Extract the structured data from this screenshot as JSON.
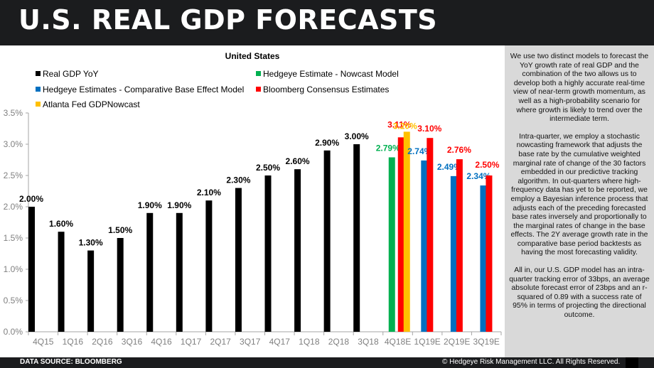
{
  "header": {
    "title": "U.S. REAL GDP FORECASTS"
  },
  "chart_data": {
    "type": "bar",
    "title": "United States",
    "xlabel": "",
    "ylabel": "",
    "ylim": [
      0,
      3.5
    ],
    "yticks": [
      "0.0%",
      "0.5%",
      "1.0%",
      "1.5%",
      "2.0%",
      "2.5%",
      "3.0%",
      "3.5%"
    ],
    "ytick_values": [
      0,
      0.5,
      1.0,
      1.5,
      2.0,
      2.5,
      3.0,
      3.5
    ],
    "grid": false,
    "legend_placement": "top",
    "categories": [
      "4Q15",
      "1Q16",
      "2Q16",
      "3Q16",
      "4Q16",
      "1Q17",
      "2Q17",
      "3Q17",
      "4Q17",
      "1Q18",
      "2Q18",
      "3Q18",
      "4Q18E",
      "1Q19E",
      "2Q19E",
      "3Q19E"
    ],
    "series": [
      {
        "name": "Real GDP YoY",
        "color": "#000000",
        "values": [
          2.0,
          1.6,
          1.3,
          1.5,
          1.9,
          1.9,
          2.1,
          2.3,
          2.5,
          2.6,
          2.9,
          3.0,
          null,
          null,
          null,
          null
        ],
        "labels": [
          "2.00%",
          "1.60%",
          "1.30%",
          "1.50%",
          "1.90%",
          "1.90%",
          "2.10%",
          "2.30%",
          "2.50%",
          "2.60%",
          "2.90%",
          "3.00%",
          null,
          null,
          null,
          null
        ]
      },
      {
        "name": "Hedgeye Estimate - Nowcast Model",
        "color": "#00b050",
        "values": [
          null,
          null,
          null,
          null,
          null,
          null,
          null,
          null,
          null,
          null,
          null,
          null,
          2.79,
          null,
          null,
          null
        ],
        "labels": [
          null,
          null,
          null,
          null,
          null,
          null,
          null,
          null,
          null,
          null,
          null,
          null,
          "2.79%",
          null,
          null,
          null
        ]
      },
      {
        "name": "Hedgeye Estimates - Comparative Base Effect Model",
        "color": "#0070c0",
        "values": [
          null,
          null,
          null,
          null,
          null,
          null,
          null,
          null,
          null,
          null,
          null,
          null,
          null,
          2.74,
          2.49,
          2.34
        ],
        "labels": [
          null,
          null,
          null,
          null,
          null,
          null,
          null,
          null,
          null,
          null,
          null,
          null,
          null,
          "2.74%",
          "2.49%",
          "2.34%"
        ]
      },
      {
        "name": "Bloomberg Consensus Estimates",
        "color": "#ff0000",
        "values": [
          null,
          null,
          null,
          null,
          null,
          null,
          null,
          null,
          null,
          null,
          null,
          null,
          3.11,
          3.1,
          2.76,
          2.5
        ],
        "labels": [
          null,
          null,
          null,
          null,
          null,
          null,
          null,
          null,
          null,
          null,
          null,
          null,
          "3.11%",
          "3.10%",
          "2.76%",
          "2.50%"
        ]
      },
      {
        "name": "Atlanta Fed GDPNowcast",
        "color": "#ffc000",
        "values": [
          null,
          null,
          null,
          null,
          null,
          null,
          null,
          null,
          null,
          null,
          null,
          null,
          3.2,
          null,
          null,
          null
        ],
        "labels": [
          null,
          null,
          null,
          null,
          null,
          null,
          null,
          null,
          null,
          null,
          null,
          null,
          "3.20%",
          null,
          null,
          null
        ]
      }
    ]
  },
  "legend": [
    {
      "label": "Real GDP YoY",
      "color": "#000000"
    },
    {
      "label": "Hedgeye Estimate - Nowcast Model",
      "color": "#00b050"
    },
    {
      "label": "Hedgeye Estimates - Comparative Base Effect Model",
      "color": "#0070c0"
    },
    {
      "label": "Bloomberg Consensus Estimates",
      "color": "#ff0000"
    },
    {
      "label": "Atlanta Fed GDPNowcast",
      "color": "#ffc000"
    }
  ],
  "panel": {
    "paragraphs": [
      "We use two distinct models to forecast the YoY growth rate of real GDP and the combination of the two allows us to develop both a highly accurate real-time view of near-term growth momentum, as well as a high-probability scenario for where growth is likely to trend over the intermediate term.",
      "Intra-quarter, we employ a stochastic nowcasting framework that adjusts the base rate by the cumulative weighted marginal rate of change of the 30 factors embedded in our predictive tracking algorithm. In out-quarters where high-frequency data has yet to be reported, we employ a Bayesian inference process that adjusts each of the preceding forecasted base rates inversely and proportionally to the marginal rates of change in the base effects. The 2Y average growth rate in the comparative base period backtests as having the most forecasting validity.",
      "All in, our U.S. GDP model has an intra-quarter tracking error of 33bps, an average absolute forecast error of 23bps and an r-squared of 0.89 with a success rate of 95% in terms of projecting the directional outcome."
    ]
  },
  "footer": {
    "source": "DATA SOURCE: BLOOMBERG",
    "copyright": "© Hedgeye Risk Management LLC. All Rights Reserved."
  }
}
